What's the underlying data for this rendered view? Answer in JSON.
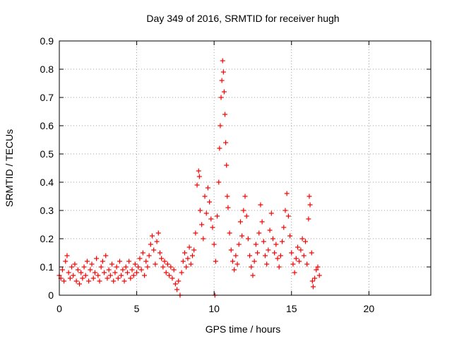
{
  "chart_data": {
    "type": "scatter",
    "title": "Day 349 of 2016, SRMTID for receiver hugh",
    "xlabel": "GPS time / hours",
    "ylabel": "SRMTID / TECUs",
    "xlim": [
      0,
      24
    ],
    "ylim": [
      0,
      0.9
    ],
    "xticks": [
      0,
      5,
      10,
      15,
      20
    ],
    "yticks": [
      0,
      0.1,
      0.2,
      0.3,
      0.4,
      0.5,
      0.6,
      0.7,
      0.8,
      0.9
    ],
    "grid": true,
    "marker": "plus",
    "series": [
      {
        "name": "SRMTID",
        "color": "#ff0000",
        "points": [
          [
            0.0,
            0.07
          ],
          [
            0.1,
            0.06
          ],
          [
            0.2,
            0.09
          ],
          [
            0.3,
            0.05
          ],
          [
            0.4,
            0.12
          ],
          [
            0.5,
            0.14
          ],
          [
            0.6,
            0.08
          ],
          [
            0.7,
            0.06
          ],
          [
            0.8,
            0.1
          ],
          [
            0.9,
            0.07
          ],
          [
            1.0,
            0.11
          ],
          [
            1.1,
            0.05
          ],
          [
            1.2,
            0.09
          ],
          [
            1.3,
            0.04
          ],
          [
            1.4,
            0.08
          ],
          [
            1.5,
            0.06
          ],
          [
            1.6,
            0.1
          ],
          [
            1.7,
            0.07
          ],
          [
            1.8,
            0.12
          ],
          [
            1.9,
            0.05
          ],
          [
            2.0,
            0.09
          ],
          [
            2.1,
            0.11
          ],
          [
            2.2,
            0.06
          ],
          [
            2.3,
            0.08
          ],
          [
            2.4,
            0.13
          ],
          [
            2.5,
            0.07
          ],
          [
            2.6,
            0.05
          ],
          [
            2.7,
            0.1
          ],
          [
            2.8,
            0.12
          ],
          [
            2.9,
            0.08
          ],
          [
            3.0,
            0.14
          ],
          [
            3.1,
            0.06
          ],
          [
            3.2,
            0.09
          ],
          [
            3.3,
            0.07
          ],
          [
            3.4,
            0.11
          ],
          [
            3.5,
            0.05
          ],
          [
            3.6,
            0.08
          ],
          [
            3.7,
            0.1
          ],
          [
            3.8,
            0.06
          ],
          [
            3.9,
            0.12
          ],
          [
            4.0,
            0.07
          ],
          [
            4.1,
            0.09
          ],
          [
            4.2,
            0.05
          ],
          [
            4.3,
            0.1
          ],
          [
            4.4,
            0.08
          ],
          [
            4.5,
            0.12
          ],
          [
            4.6,
            0.06
          ],
          [
            4.7,
            0.09
          ],
          [
            4.8,
            0.07
          ],
          [
            4.9,
            0.11
          ],
          [
            5.0,
            0.08
          ],
          [
            5.1,
            0.1
          ],
          [
            5.2,
            0.13
          ],
          [
            5.3,
            0.09
          ],
          [
            5.4,
            0.15
          ],
          [
            5.5,
            0.07
          ],
          [
            5.6,
            0.12
          ],
          [
            5.7,
            0.1
          ],
          [
            5.8,
            0.14
          ],
          [
            5.9,
            0.18
          ],
          [
            6.0,
            0.21
          ],
          [
            6.1,
            0.16
          ],
          [
            6.2,
            0.11
          ],
          [
            6.3,
            0.19
          ],
          [
            6.4,
            0.22
          ],
          [
            6.5,
            0.15
          ],
          [
            6.6,
            0.13
          ],
          [
            6.7,
            0.1
          ],
          [
            6.8,
            0.12
          ],
          [
            6.9,
            0.08
          ],
          [
            7.0,
            0.11
          ],
          [
            7.1,
            0.07
          ],
          [
            7.2,
            0.1
          ],
          [
            7.3,
            0.06
          ],
          [
            7.4,
            0.09
          ],
          [
            7.5,
            0.04
          ],
          [
            7.6,
            0.02
          ],
          [
            7.7,
            0.05
          ],
          [
            7.8,
            0.0
          ],
          [
            7.9,
            0.08
          ],
          [
            8.0,
            0.12
          ],
          [
            8.1,
            0.15
          ],
          [
            8.2,
            0.1
          ],
          [
            8.3,
            0.13
          ],
          [
            8.4,
            0.17
          ],
          [
            8.5,
            0.11
          ],
          [
            8.6,
            0.14
          ],
          [
            8.7,
            0.16
          ],
          [
            8.8,
            0.22
          ],
          [
            8.9,
            0.39
          ],
          [
            9.0,
            0.44
          ],
          [
            9.05,
            0.42
          ],
          [
            9.1,
            0.3
          ],
          [
            9.2,
            0.25
          ],
          [
            9.3,
            0.2
          ],
          [
            9.4,
            0.35
          ],
          [
            9.5,
            0.29
          ],
          [
            9.6,
            0.38
          ],
          [
            9.7,
            0.33
          ],
          [
            9.8,
            0.27
          ],
          [
            9.9,
            0.24
          ],
          [
            10.0,
            0.18
          ],
          [
            10.05,
            0.0
          ],
          [
            10.1,
            0.12
          ],
          [
            10.2,
            0.28
          ],
          [
            10.3,
            0.4
          ],
          [
            10.35,
            0.52
          ],
          [
            10.4,
            0.6
          ],
          [
            10.45,
            0.7
          ],
          [
            10.5,
            0.76
          ],
          [
            10.55,
            0.83
          ],
          [
            10.6,
            0.79
          ],
          [
            10.65,
            0.72
          ],
          [
            10.7,
            0.64
          ],
          [
            10.75,
            0.54
          ],
          [
            10.8,
            0.46
          ],
          [
            10.85,
            0.35
          ],
          [
            10.9,
            0.31
          ],
          [
            11.0,
            0.22
          ],
          [
            11.1,
            0.16
          ],
          [
            11.2,
            0.12
          ],
          [
            11.3,
            0.09
          ],
          [
            11.4,
            0.14
          ],
          [
            11.5,
            0.11
          ],
          [
            11.6,
            0.18
          ],
          [
            11.7,
            0.26
          ],
          [
            11.8,
            0.21
          ],
          [
            11.9,
            0.3
          ],
          [
            12.0,
            0.35
          ],
          [
            12.1,
            0.28
          ],
          [
            12.2,
            0.2
          ],
          [
            12.3,
            0.14
          ],
          [
            12.4,
            0.1
          ],
          [
            12.5,
            0.07
          ],
          [
            12.6,
            0.12
          ],
          [
            12.7,
            0.18
          ],
          [
            12.8,
            0.15
          ],
          [
            12.9,
            0.22
          ],
          [
            13.0,
            0.32
          ],
          [
            13.1,
            0.26
          ],
          [
            13.2,
            0.19
          ],
          [
            13.3,
            0.14
          ],
          [
            13.4,
            0.11
          ],
          [
            13.5,
            0.16
          ],
          [
            13.6,
            0.23
          ],
          [
            13.7,
            0.29
          ],
          [
            13.8,
            0.2
          ],
          [
            13.9,
            0.15
          ],
          [
            14.0,
            0.18
          ],
          [
            14.1,
            0.13
          ],
          [
            14.2,
            0.1
          ],
          [
            14.3,
            0.14
          ],
          [
            14.4,
            0.19
          ],
          [
            14.5,
            0.24
          ],
          [
            14.6,
            0.3
          ],
          [
            14.7,
            0.36
          ],
          [
            14.8,
            0.28
          ],
          [
            14.9,
            0.21
          ],
          [
            15.0,
            0.15
          ],
          [
            15.1,
            0.11
          ],
          [
            15.2,
            0.08
          ],
          [
            15.3,
            0.13
          ],
          [
            15.4,
            0.17
          ],
          [
            15.5,
            0.12
          ],
          [
            15.6,
            0.16
          ],
          [
            15.7,
            0.2
          ],
          [
            15.8,
            0.14
          ],
          [
            15.9,
            0.19
          ],
          [
            16.0,
            0.11
          ],
          [
            16.1,
            0.27
          ],
          [
            16.15,
            0.35
          ],
          [
            16.2,
            0.32
          ],
          [
            16.3,
            0.15
          ],
          [
            16.35,
            0.05
          ],
          [
            16.4,
            0.03
          ],
          [
            16.5,
            0.06
          ],
          [
            16.6,
            0.09
          ],
          [
            16.7,
            0.1
          ],
          [
            16.8,
            0.07
          ]
        ]
      }
    ]
  }
}
